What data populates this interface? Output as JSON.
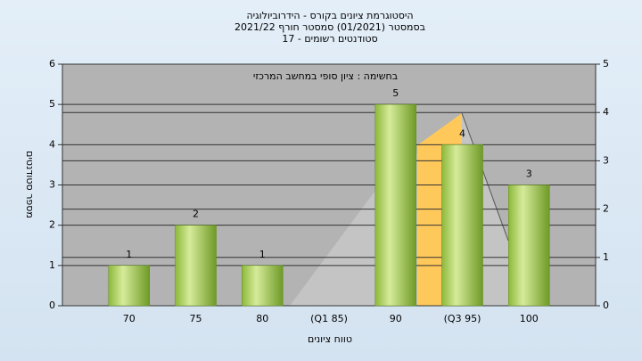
{
  "chart_data": {
    "type": "bar",
    "title": [
      "היסטוגרמת ציונים בקורס - הידרוביולוגיה",
      "בסמסטר  (01/2021)  סמסטר חורף 2021/22",
      "סטודנטים רשומים - 17"
    ],
    "annotation": "בחשימה : ציון סופי במחשב המרכזי",
    "x_label": "טווח ציונים",
    "y_label": "מספר סטודנטים",
    "categories": [
      "70",
      "75",
      "80",
      "(Q1 85)",
      "90",
      "(Q3 95)",
      "100"
    ],
    "values": [
      1,
      2,
      1,
      0,
      5,
      4,
      3
    ],
    "value_labels": [
      "1",
      "2",
      "1",
      null,
      "5",
      "4",
      "3"
    ],
    "color": "#9cc64a",
    "ylim": [
      0,
      6
    ],
    "yticks": [
      0,
      1,
      2,
      3,
      4,
      5,
      6
    ],
    "y2lim": [
      0,
      5
    ],
    "y2ticks": [
      0,
      1,
      2,
      3,
      4,
      5
    ],
    "grid": true
  }
}
